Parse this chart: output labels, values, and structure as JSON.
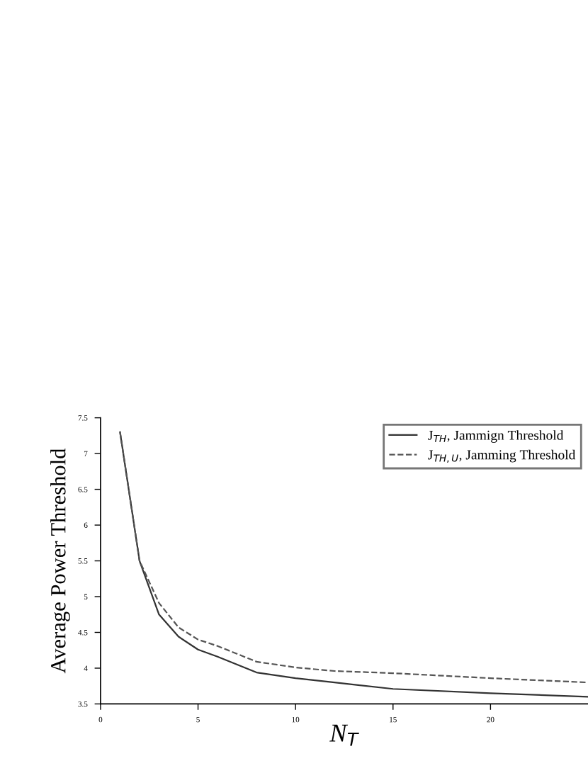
{
  "chart_data": {
    "type": "line",
    "xlabel": "N$_{T}$",
    "ylabel": "Average Power Threshold",
    "x": [
      1,
      2,
      3,
      4,
      5,
      6,
      8,
      10,
      12,
      15,
      20,
      25
    ],
    "series": [
      {
        "name": "J$_{TH}$, Jammign Threshold",
        "color": "#333333",
        "line_style": "solid",
        "values": [
          7.3,
          5.5,
          4.75,
          4.44,
          4.26,
          4.16,
          3.94,
          3.86,
          3.8,
          3.71,
          3.65,
          3.6
        ]
      },
      {
        "name": "J$_{TH,U}$, Jamming Threshold",
        "color": "#555555",
        "line_style": "dashed",
        "values": [
          7.3,
          5.5,
          4.91,
          4.57,
          4.4,
          4.31,
          4.09,
          4.01,
          3.96,
          3.93,
          3.86,
          3.8
        ]
      }
    ],
    "xlim": [
      0,
      25
    ],
    "xticks": [
      0,
      5,
      10,
      15,
      20
    ],
    "ylim": [
      3.5,
      7.5
    ],
    "yticks": [
      3.5,
      4,
      4.5,
      5,
      5.5,
      6,
      6.5,
      7,
      7.5
    ],
    "grid": false,
    "legend": "top right",
    "marker": "none"
  }
}
